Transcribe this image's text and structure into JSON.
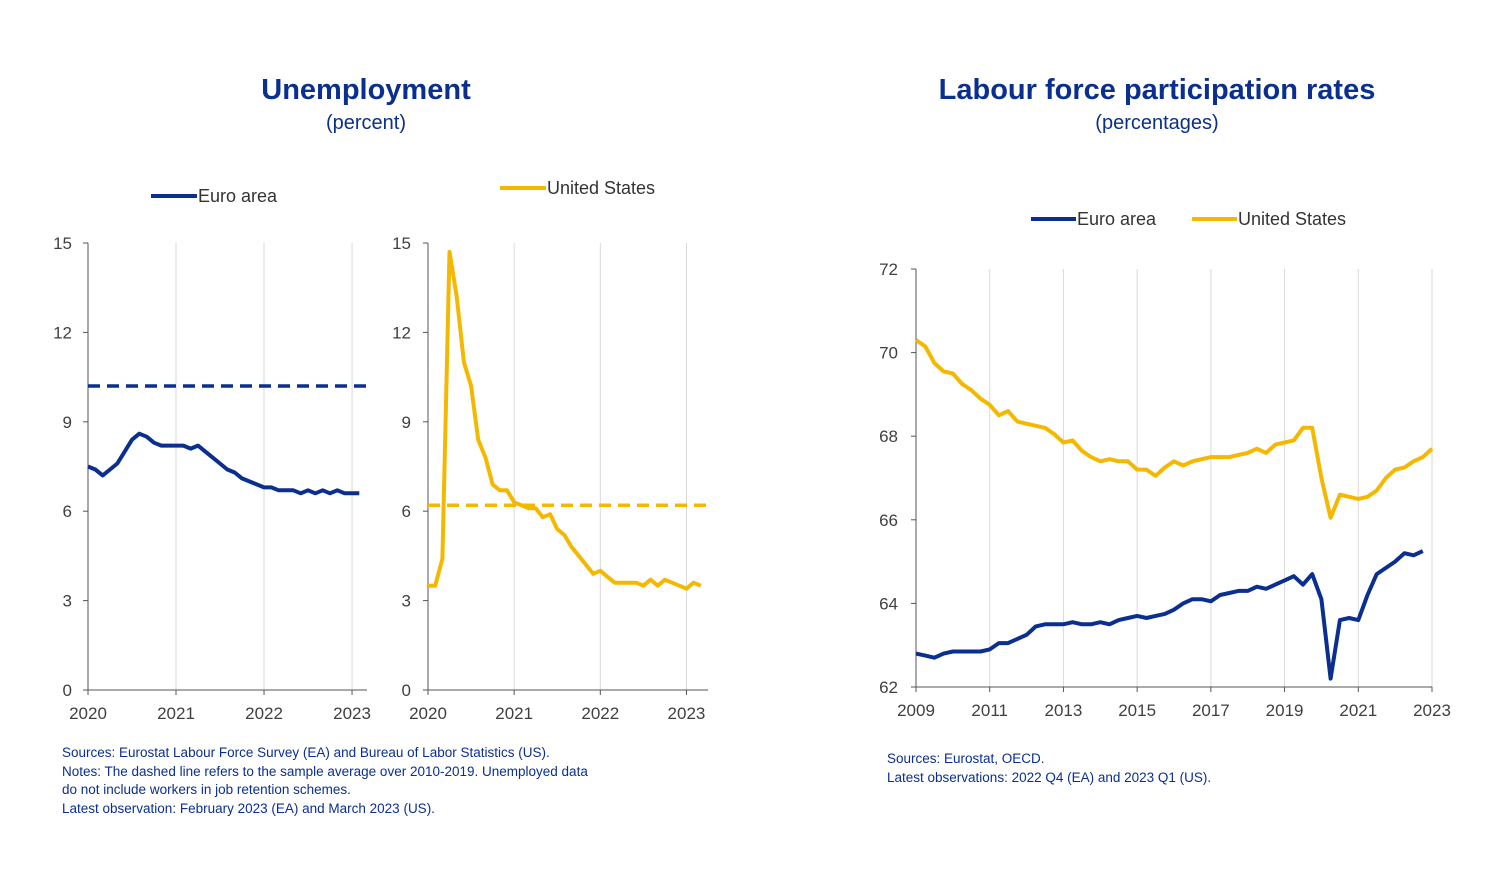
{
  "colors": {
    "euro": "#0b2f8f",
    "us": "#f5b800",
    "grid": "#d9d9d9",
    "axis": "#555555",
    "text": "#404040",
    "blue_text": "#0b2f8f"
  },
  "left": {
    "title": "Unemployment",
    "subtitle": "(percent)",
    "notes": [
      "Sources: Eurostat Labour Force Survey (EA) and Bureau of Labor Statistics (US).",
      "Notes: The dashed line refers to the sample average over 2010-2019. Unemployed data",
      "do not include workers in job retention schemes.",
      "Latest observation: February 2023 (EA) and March 2023 (US)."
    ]
  },
  "right": {
    "title": "Labour force participation rates",
    "subtitle": "(percentages)",
    "notes": [
      "Sources: Eurostat, OECD.",
      "Latest observations: 2022 Q4 (EA) and 2023 Q1 (US)."
    ]
  },
  "chart_data": [
    {
      "type": "line",
      "title": "Unemployment — Euro area",
      "ylabel": "percent",
      "ylim": [
        0,
        15
      ],
      "yticks": [
        "0",
        "3",
        "6",
        "9",
        "12",
        "15"
      ],
      "xlim": [
        2020,
        2023.17
      ],
      "xticks": [
        "2020",
        "2021",
        "2022",
        "2023"
      ],
      "legend": "top",
      "series": [
        {
          "name": "Euro area",
          "color": "#0b2f8f",
          "x": [
            2020.0,
            2020.083,
            2020.167,
            2020.25,
            2020.333,
            2020.417,
            2020.5,
            2020.583,
            2020.667,
            2020.75,
            2020.833,
            2020.917,
            2021.0,
            2021.083,
            2021.167,
            2021.25,
            2021.333,
            2021.417,
            2021.5,
            2021.583,
            2021.667,
            2021.75,
            2021.833,
            2021.917,
            2022.0,
            2022.083,
            2022.167,
            2022.25,
            2022.333,
            2022.417,
            2022.5,
            2022.583,
            2022.667,
            2022.75,
            2022.833,
            2022.917,
            2023.0,
            2023.083
          ],
          "y": [
            7.5,
            7.4,
            7.2,
            7.4,
            7.6,
            8.0,
            8.4,
            8.6,
            8.5,
            8.3,
            8.2,
            8.2,
            8.2,
            8.2,
            8.1,
            8.2,
            8.0,
            7.8,
            7.6,
            7.4,
            7.3,
            7.1,
            7.0,
            6.9,
            6.8,
            6.8,
            6.7,
            6.7,
            6.7,
            6.6,
            6.7,
            6.6,
            6.7,
            6.6,
            6.7,
            6.6,
            6.6,
            6.6
          ]
        },
        {
          "name": "Sample average 2010-2019",
          "color": "#0b2f8f",
          "style": "dashed",
          "x": [
            2020.0,
            2023.17
          ],
          "y": [
            10.2,
            10.2
          ]
        }
      ]
    },
    {
      "type": "line",
      "title": "Unemployment — United States",
      "ylabel": "percent",
      "ylim": [
        0,
        15
      ],
      "yticks": [
        "0",
        "3",
        "6",
        "9",
        "12",
        "15"
      ],
      "xlim": [
        2020,
        2023.25
      ],
      "xticks": [
        "2020",
        "2021",
        "2022",
        "2023"
      ],
      "legend": "top",
      "series": [
        {
          "name": "United States",
          "color": "#f5b800",
          "x": [
            2020.0,
            2020.083,
            2020.167,
            2020.25,
            2020.333,
            2020.417,
            2020.5,
            2020.583,
            2020.667,
            2020.75,
            2020.833,
            2020.917,
            2021.0,
            2021.083,
            2021.167,
            2021.25,
            2021.333,
            2021.417,
            2021.5,
            2021.583,
            2021.667,
            2021.75,
            2021.833,
            2021.917,
            2022.0,
            2022.083,
            2022.167,
            2022.25,
            2022.333,
            2022.417,
            2022.5,
            2022.583,
            2022.667,
            2022.75,
            2022.833,
            2022.917,
            2023.0,
            2023.083,
            2023.167
          ],
          "y": [
            3.5,
            3.5,
            4.4,
            14.7,
            13.2,
            11.0,
            10.2,
            8.4,
            7.8,
            6.9,
            6.7,
            6.7,
            6.3,
            6.2,
            6.1,
            6.1,
            5.8,
            5.9,
            5.4,
            5.2,
            4.8,
            4.5,
            4.2,
            3.9,
            4.0,
            3.8,
            3.6,
            3.6,
            3.6,
            3.6,
            3.5,
            3.7,
            3.5,
            3.7,
            3.6,
            3.5,
            3.4,
            3.6,
            3.5
          ]
        },
        {
          "name": "Sample average 2010-2019",
          "color": "#f5b800",
          "style": "dashed",
          "x": [
            2020.0,
            2023.25
          ],
          "y": [
            6.2,
            6.2
          ]
        }
      ]
    },
    {
      "type": "line",
      "title": "Labour force participation rates",
      "ylabel": "percentages",
      "ylim": [
        62,
        72
      ],
      "yticks": [
        "62",
        "64",
        "66",
        "68",
        "70",
        "72"
      ],
      "xlim": [
        2009,
        2023
      ],
      "xticks": [
        "2009",
        "2011",
        "2013",
        "2015",
        "2017",
        "2019",
        "2021",
        "2023"
      ],
      "legend": "top",
      "series": [
        {
          "name": "Euro area",
          "color": "#0b2f8f",
          "x": [
            2009.0,
            2009.25,
            2009.5,
            2009.75,
            2010.0,
            2010.25,
            2010.5,
            2010.75,
            2011.0,
            2011.25,
            2011.5,
            2011.75,
            2012.0,
            2012.25,
            2012.5,
            2012.75,
            2013.0,
            2013.25,
            2013.5,
            2013.75,
            2014.0,
            2014.25,
            2014.5,
            2014.75,
            2015.0,
            2015.25,
            2015.5,
            2015.75,
            2016.0,
            2016.25,
            2016.5,
            2016.75,
            2017.0,
            2017.25,
            2017.5,
            2017.75,
            2018.0,
            2018.25,
            2018.5,
            2018.75,
            2019.0,
            2019.25,
            2019.5,
            2019.75,
            2020.0,
            2020.25,
            2020.5,
            2020.75,
            2021.0,
            2021.25,
            2021.5,
            2021.75,
            2022.0,
            2022.25,
            2022.5,
            2022.75
          ],
          "y": [
            62.8,
            62.75,
            62.7,
            62.8,
            62.85,
            62.85,
            62.85,
            62.85,
            62.9,
            63.05,
            63.05,
            63.15,
            63.25,
            63.45,
            63.5,
            63.5,
            63.5,
            63.55,
            63.5,
            63.5,
            63.55,
            63.5,
            63.6,
            63.65,
            63.7,
            63.65,
            63.7,
            63.75,
            63.85,
            64.0,
            64.1,
            64.1,
            64.05,
            64.2,
            64.25,
            64.3,
            64.3,
            64.4,
            64.35,
            64.45,
            64.55,
            64.65,
            64.45,
            64.7,
            64.1,
            62.2,
            63.6,
            63.65,
            63.6,
            64.2,
            64.7,
            64.85,
            65.0,
            65.2,
            65.15,
            65.25
          ]
        },
        {
          "name": "United States",
          "color": "#f5b800",
          "x": [
            2009.0,
            2009.25,
            2009.5,
            2009.75,
            2010.0,
            2010.25,
            2010.5,
            2010.75,
            2011.0,
            2011.25,
            2011.5,
            2011.75,
            2012.0,
            2012.25,
            2012.5,
            2012.75,
            2013.0,
            2013.25,
            2013.5,
            2013.75,
            2014.0,
            2014.25,
            2014.5,
            2014.75,
            2015.0,
            2015.25,
            2015.5,
            2015.75,
            2016.0,
            2016.25,
            2016.5,
            2016.75,
            2017.0,
            2017.25,
            2017.5,
            2017.75,
            2018.0,
            2018.25,
            2018.5,
            2018.75,
            2019.0,
            2019.25,
            2019.5,
            2019.75,
            2020.0,
            2020.25,
            2020.5,
            2020.75,
            2021.0,
            2021.25,
            2021.5,
            2021.75,
            2022.0,
            2022.25,
            2022.5,
            2022.75,
            2023.0
          ],
          "y": [
            70.3,
            70.15,
            69.75,
            69.55,
            69.5,
            69.25,
            69.1,
            68.9,
            68.75,
            68.5,
            68.6,
            68.35,
            68.3,
            68.25,
            68.2,
            68.05,
            67.85,
            67.9,
            67.65,
            67.5,
            67.4,
            67.45,
            67.4,
            67.4,
            67.2,
            67.2,
            67.05,
            67.25,
            67.4,
            67.3,
            67.4,
            67.45,
            67.5,
            67.5,
            67.5,
            67.55,
            67.6,
            67.7,
            67.6,
            67.8,
            67.85,
            67.9,
            68.2,
            68.2,
            67.0,
            66.05,
            66.6,
            66.55,
            66.5,
            66.55,
            66.7,
            67.0,
            67.2,
            67.25,
            67.4,
            67.5,
            67.7
          ]
        }
      ]
    }
  ]
}
